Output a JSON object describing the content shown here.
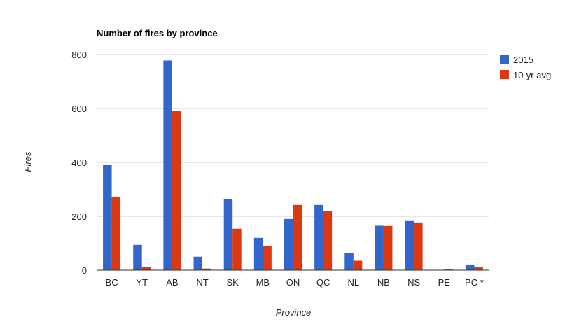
{
  "chart_data": {
    "type": "bar",
    "title": "Number of fires by province",
    "xlabel": "Province",
    "ylabel": "Fires",
    "ylim": [
      0,
      800
    ],
    "yticks": [
      0,
      200,
      400,
      600,
      800
    ],
    "grid": true,
    "legend_position": "right",
    "categories": [
      "BC",
      "YT",
      "AB",
      "NT",
      "SK",
      "MB",
      "ON",
      "QC",
      "NL",
      "NB",
      "NS",
      "PE",
      "PC *"
    ],
    "series": [
      {
        "name": "2015",
        "color": "#3366cc",
        "values": [
          391,
          94,
          778,
          50,
          265,
          120,
          190,
          242,
          63,
          165,
          185,
          0,
          21
        ]
      },
      {
        "name": "10-yr avg",
        "color": "#dc3912",
        "values": [
          273,
          11,
          590,
          6,
          154,
          89,
          242,
          219,
          35,
          164,
          177,
          3,
          11
        ]
      }
    ]
  }
}
